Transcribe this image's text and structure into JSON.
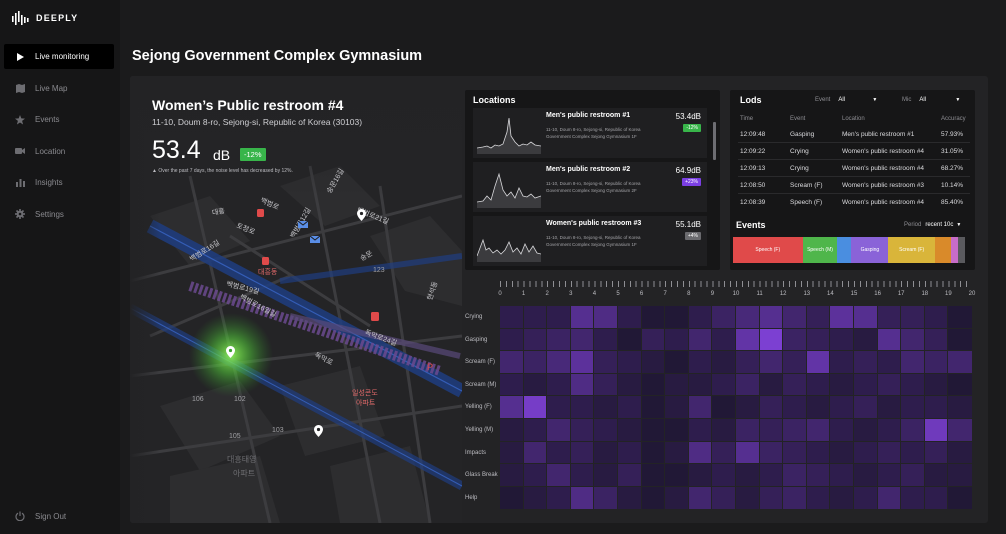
{
  "app": {
    "brand": "DEEPLY"
  },
  "sidebar": {
    "items": [
      {
        "label": "Live monitoring",
        "icon": "play-icon",
        "active": true
      },
      {
        "label": "Live Map",
        "icon": "map-icon",
        "active": false
      },
      {
        "label": "Events",
        "icon": "star-icon",
        "active": false
      },
      {
        "label": "Location",
        "icon": "camera-icon",
        "active": false
      },
      {
        "label": "Insights",
        "icon": "bar-chart-icon",
        "active": false
      },
      {
        "label": "Settings",
        "icon": "gear-icon",
        "active": false
      }
    ],
    "signout": "Sign Out"
  },
  "page": {
    "title": "Sejong Government Complex Gymnasium"
  },
  "selected": {
    "title": "Women’s Public restroom #4",
    "address": "11-10, Doum 8-ro, Sejong-si, Republic of Korea (30103)",
    "value": "53.4",
    "unit": "dB",
    "change": "-12%",
    "note": "Over the past 7 days, the noise level has decreased by 12%."
  },
  "map": {
    "labels": [
      "대흥",
      "대흥동",
      "백범로16길",
      "백범로19길",
      "백범로12길",
      "백범로16일길",
      "백범로",
      "독막로",
      "독막로24길",
      "토정로",
      "숭문16길",
      "백범로21길",
      "숭문",
      "현석동",
      "대흥태영",
      "아파트",
      "일성콘도",
      "아파트",
      "103",
      "102",
      "105",
      "106",
      "123"
    ]
  },
  "locations": {
    "title": "Locations",
    "items": [
      {
        "name": "Men's public restroom #1",
        "address": "11-10, Doum 8-ro, Sejong-si, Republic of Korea Government Complex Sejong Gymnasium 1F",
        "db": "53.4dB",
        "change": "-12%",
        "badge_color": "#38b54a"
      },
      {
        "name": "Men's public restroom #2",
        "address": "11-10, Doum 8-ro, Sejong-si, Republic of Korea Government Complex Sejong Gymnasium 2F",
        "db": "64.9dB",
        "change": "+23%",
        "badge_color": "#7b3fe4"
      },
      {
        "name": "Women's public restroom #3",
        "address": "11-10, Doum 8-ro, Sejong-si, Republic of Korea Government Complex Sejong Gymnasium 1F",
        "db": "55.1dB",
        "change": "+4%",
        "badge_color": "#6a6a6e"
      }
    ]
  },
  "logs": {
    "title": "Lods",
    "event_filter_label": "Event",
    "event_filter_value": "All",
    "mic_filter_label": "Mic",
    "mic_filter_value": "All",
    "columns": [
      "Time",
      "Event",
      "Location",
      "Accuracy"
    ],
    "rows": [
      [
        "12:09:48",
        "Gasping",
        "Men's public restroom #1",
        "57.93%"
      ],
      [
        "12:09:22",
        "Crying",
        "Women's public restroom #4",
        "31.05%"
      ],
      [
        "12:09:13",
        "Crying",
        "Women's public restroom #4",
        "68.27%"
      ],
      [
        "12:08:50",
        "Scream (F)",
        "Women's public restroom #3",
        "10.14%"
      ],
      [
        "12:08:39",
        "Speech (F)",
        "Women's public restroom #4",
        "85.40%"
      ]
    ]
  },
  "events": {
    "title": "Events",
    "period_label": "Period",
    "period_value": "recent 10c",
    "segments": [
      {
        "label": "Speech (F)",
        "color": "#e04a4a",
        "share": 0.3
      },
      {
        "label": "Speech (M)",
        "color": "#4fb64b",
        "share": 0.15
      },
      {
        "label": "",
        "color": "#4a8ee0",
        "share": 0.06
      },
      {
        "label": "Gasping",
        "color": "#8a63d8",
        "share": 0.16
      },
      {
        "label": "Scream (F)",
        "color": "#d9b53a",
        "share": 0.2
      },
      {
        "label": "",
        "color": "#d98a2a",
        "share": 0.07
      },
      {
        "label": "",
        "color": "#c86cc8",
        "share": 0.03
      },
      {
        "label": "",
        "color": "#5a5a5e",
        "share": 0.03
      }
    ]
  },
  "heatmap": {
    "hours": [
      "0",
      "1",
      "2",
      "3",
      "4",
      "5",
      "6",
      "7",
      "8",
      "9",
      "10",
      "11",
      "12",
      "13",
      "14",
      "15",
      "16",
      "17",
      "18",
      "19",
      "20"
    ],
    "rows": [
      "Crying",
      "Gasping",
      "Scream (F)",
      "Scream (M)",
      "Yelling (F)",
      "Yelling (M)",
      "Impacts",
      "Glass Break",
      "Help"
    ],
    "values": [
      [
        0.2,
        0.2,
        0.2,
        0.5,
        0.45,
        0.2,
        0.1,
        0.1,
        0.2,
        0.3,
        0.4,
        0.5,
        0.35,
        0.25,
        0.55,
        0.5,
        0.25,
        0.25,
        0.2,
        0.1
      ],
      [
        0.2,
        0.25,
        0.3,
        0.35,
        0.2,
        0.1,
        0.25,
        0.2,
        0.35,
        0.2,
        0.6,
        0.8,
        0.3,
        0.25,
        0.2,
        0.15,
        0.5,
        0.35,
        0.25,
        0.1
      ],
      [
        0.35,
        0.3,
        0.4,
        0.55,
        0.25,
        0.2,
        0.15,
        0.1,
        0.2,
        0.15,
        0.25,
        0.35,
        0.25,
        0.6,
        0.2,
        0.25,
        0.2,
        0.35,
        0.3,
        0.35
      ],
      [
        0.2,
        0.15,
        0.2,
        0.45,
        0.25,
        0.15,
        0.1,
        0.15,
        0.15,
        0.2,
        0.3,
        0.15,
        0.25,
        0.2,
        0.15,
        0.2,
        0.25,
        0.2,
        0.15,
        0.1
      ],
      [
        0.5,
        0.75,
        0.2,
        0.2,
        0.15,
        0.2,
        0.1,
        0.15,
        0.35,
        0.1,
        0.15,
        0.25,
        0.2,
        0.15,
        0.2,
        0.25,
        0.15,
        0.2,
        0.2,
        0.15
      ],
      [
        0.15,
        0.2,
        0.35,
        0.25,
        0.2,
        0.15,
        0.1,
        0.1,
        0.2,
        0.15,
        0.3,
        0.25,
        0.3,
        0.35,
        0.2,
        0.15,
        0.2,
        0.3,
        0.7,
        0.35
      ],
      [
        0.15,
        0.35,
        0.2,
        0.25,
        0.15,
        0.2,
        0.1,
        0.15,
        0.45,
        0.25,
        0.5,
        0.3,
        0.25,
        0.2,
        0.15,
        0.2,
        0.25,
        0.2,
        0.25,
        0.15
      ],
      [
        0.15,
        0.2,
        0.35,
        0.2,
        0.15,
        0.25,
        0.1,
        0.1,
        0.15,
        0.2,
        0.15,
        0.2,
        0.3,
        0.25,
        0.2,
        0.15,
        0.2,
        0.25,
        0.15,
        0.15
      ],
      [
        0.1,
        0.15,
        0.2,
        0.45,
        0.3,
        0.15,
        0.1,
        0.15,
        0.35,
        0.25,
        0.15,
        0.25,
        0.3,
        0.2,
        0.15,
        0.2,
        0.35,
        0.2,
        0.2,
        0.1
      ]
    ]
  }
}
